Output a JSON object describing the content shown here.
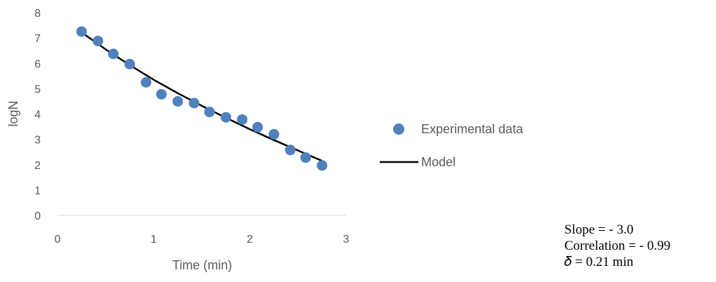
{
  "chart_data": {
    "type": "scatter",
    "title": "",
    "xlabel": "Time (min)",
    "ylabel": "logN",
    "xlim": [
      0,
      3
    ],
    "ylim": [
      0,
      8
    ],
    "x_ticks": [
      "0",
      "1",
      "2",
      "3"
    ],
    "y_ticks": [
      "0",
      "1",
      "2",
      "3",
      "4",
      "5",
      "6",
      "7",
      "8"
    ],
    "grid": false,
    "legend_placement": "right",
    "series": [
      {
        "name": "Experimental data",
        "kind": "markers",
        "color": "#4f81bd",
        "x": [
          0.25,
          0.42,
          0.58,
          0.75,
          0.92,
          1.08,
          1.25,
          1.42,
          1.58,
          1.75,
          1.92,
          2.08,
          2.25,
          2.42,
          2.58,
          2.75
        ],
        "y": [
          7.25,
          6.88,
          6.37,
          5.97,
          5.25,
          4.78,
          4.5,
          4.43,
          4.08,
          3.87,
          3.78,
          3.48,
          3.2,
          2.58,
          2.28,
          1.97
        ]
      },
      {
        "name": "Model",
        "kind": "line",
        "color": "#000000",
        "x": [
          0.25,
          0.5,
          0.75,
          1.0,
          1.25,
          1.5,
          1.75,
          2.0,
          2.25,
          2.5,
          2.75
        ],
        "y": [
          7.22,
          6.55,
          5.93,
          5.35,
          4.82,
          4.32,
          3.85,
          3.4,
          2.97,
          2.56,
          2.15
        ]
      }
    ]
  },
  "stats": {
    "slope": "Slope = - 3.0",
    "correlation": "Correlation = - 0.99",
    "delta": "𝛿 = 0.21 min"
  }
}
